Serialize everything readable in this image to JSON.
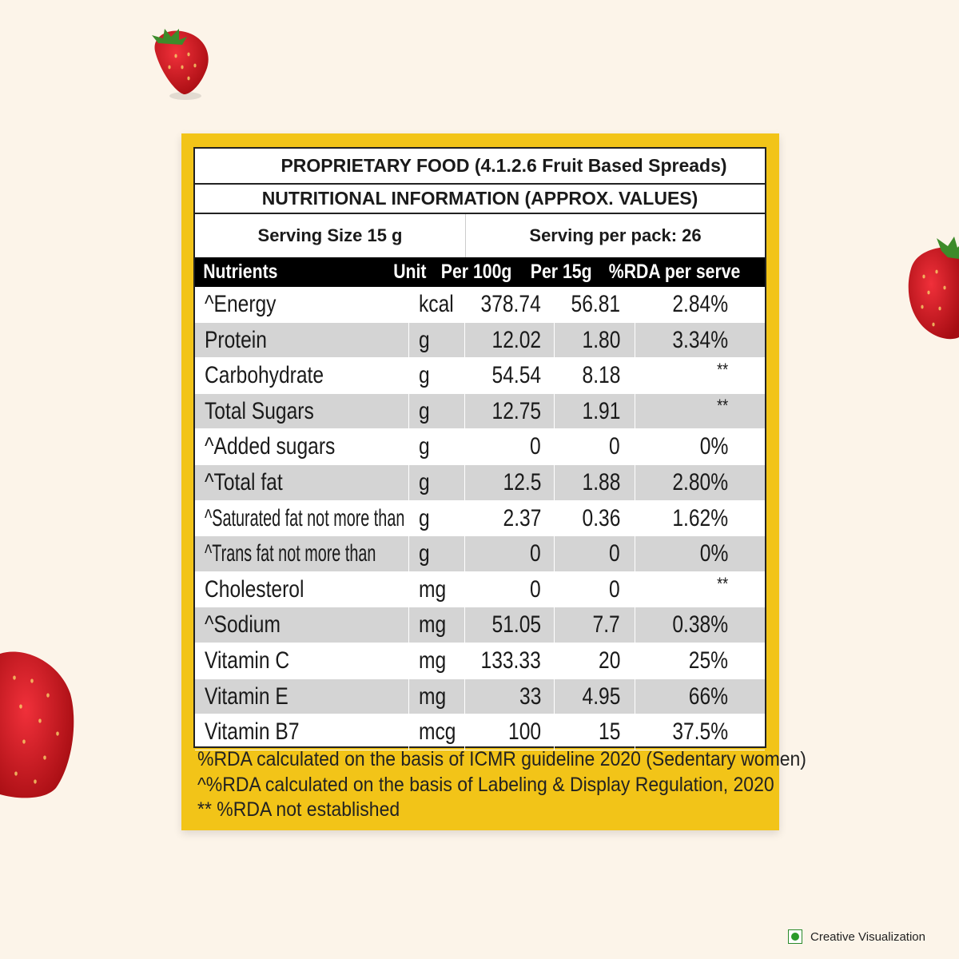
{
  "label": {
    "title": "PROPRIETARY FOOD (4.1.2.6 Fruit Based Spreads)",
    "subtitle": "NUTRITIONAL INFORMATION (APPROX. VALUES)",
    "serving_size": "Serving Size 15 g",
    "servings_per_pack": "Serving per pack: 26",
    "headers": [
      "Nutrients",
      "Unit",
      "Per 100g",
      "Per 15g",
      "%RDA per serve"
    ],
    "rows": [
      {
        "nutrient": "^Energy",
        "unit": "kcal",
        "per100": "378.74",
        "per15": "56.81",
        "rda": "2.84%"
      },
      {
        "nutrient": "Protein",
        "unit": "g",
        "per100": "12.02",
        "per15": "1.80",
        "rda": "3.34%"
      },
      {
        "nutrient": "Carbohydrate",
        "unit": "g",
        "per100": "54.54",
        "per15": "8.18",
        "rda": "**"
      },
      {
        "nutrient": "Total Sugars",
        "unit": "g",
        "per100": "12.75",
        "per15": "1.91",
        "rda": "**"
      },
      {
        "nutrient": "^Added sugars",
        "unit": "g",
        "per100": "0",
        "per15": "0",
        "rda": "0%"
      },
      {
        "nutrient": "^Total fat",
        "unit": "g",
        "per100": "12.5",
        "per15": "1.88",
        "rda": "2.80%"
      },
      {
        "nutrient": "^Saturated fat not more than",
        "unit": "g",
        "per100": "2.37",
        "per15": "0.36",
        "rda": "1.62%"
      },
      {
        "nutrient": "^Trans fat not more than",
        "unit": "g",
        "per100": "0",
        "per15": "0",
        "rda": "0%"
      },
      {
        "nutrient": "Cholesterol",
        "unit": "mg",
        "per100": "0",
        "per15": "0",
        "rda": "**"
      },
      {
        "nutrient": "^Sodium",
        "unit": "mg",
        "per100": "51.05",
        "per15": "7.7",
        "rda": "0.38%"
      },
      {
        "nutrient": "Vitamin C",
        "unit": "mg",
        "per100": "133.33",
        "per15": "20",
        "rda": "25%"
      },
      {
        "nutrient": "Vitamin E",
        "unit": "mg",
        "per100": "33",
        "per15": "4.95",
        "rda": "66%"
      },
      {
        "nutrient": "Vitamin B7",
        "unit": "mcg",
        "per100": "100",
        "per15": "15",
        "rda": "37.5%"
      }
    ],
    "footnotes": [
      "%RDA calculated on the basis of ICMR guideline 2020 (Sedentary women)",
      "^%RDA  calculated on the basis of Labeling & Display Regulation, 2020",
      "** %RDA not established"
    ]
  },
  "badge": {
    "text": "Creative Visualization",
    "icon": "veg-mark-icon"
  },
  "decor": {
    "icon": "strawberry-icon"
  },
  "colors": {
    "background": "#fcf4e9",
    "panel": "#f2c418",
    "header": "#000000",
    "stripe": "#d4d4d4",
    "berry": "#d8191f"
  }
}
